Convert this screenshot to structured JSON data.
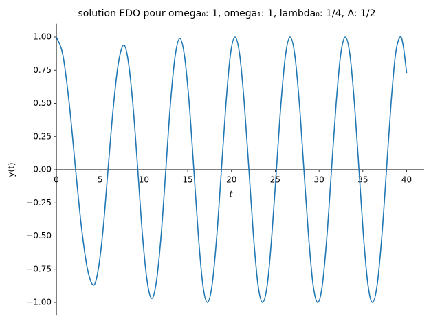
{
  "chart_data": {
    "type": "line",
    "title": "solution EDO pour omega₀: 1, omega₁: 1, lambda₀: 1/4, A: 1/2",
    "x_label": "t",
    "y_label": "y(t)",
    "xlim": [
      0,
      42
    ],
    "ylim": [
      -1.1,
      1.1
    ],
    "xticks": [
      0,
      5,
      10,
      15,
      20,
      25,
      30,
      35,
      40
    ],
    "yticks": [
      {
        "value": -1,
        "label": "−1.00"
      },
      {
        "value": -0.75,
        "label": "−0.75"
      },
      {
        "value": -0.5,
        "label": "−0.50"
      },
      {
        "value": -0.25,
        "label": "−0.25"
      },
      {
        "value": 0,
        "label": "0.00"
      },
      {
        "value": 0.25,
        "label": "0.25"
      },
      {
        "value": 0.5,
        "label": "0.50"
      },
      {
        "value": 0.75,
        "label": "0.75"
      },
      {
        "value": 1,
        "label": "1.00"
      }
    ],
    "series": [
      {
        "color": "#1f77b4",
        "x": [
          0,
          0.73,
          1.47,
          2.2,
          2.88,
          3.56,
          4.24,
          4.79,
          5.35,
          5.9,
          6.5,
          7.1,
          7.7,
          8.23,
          8.77,
          9.3,
          9.83,
          10.37,
          10.9,
          11.43,
          11.97,
          12.5,
          13.03,
          13.57,
          14.1,
          14.63,
          15.17,
          15.7,
          16.22,
          16.73,
          17.25,
          17.78,
          18.32,
          18.85,
          19.37,
          19.88,
          20.4,
          20.93,
          21.46,
          21.99,
          22.51,
          23.03,
          23.55,
          24.08,
          24.6,
          25.13,
          25.65,
          26.18,
          26.7,
          27.22,
          27.75,
          28.27,
          28.8,
          29.32,
          29.85,
          30.37,
          30.9,
          31.42,
          31.95,
          32.47,
          33,
          33.52,
          34.04,
          34.56,
          35.07,
          35.59,
          36.1,
          36.63,
          37.17,
          37.7,
          38.22,
          38.73,
          39.25,
          39.6,
          40
        ],
        "values": [
          1,
          0.87,
          0.5,
          0,
          -0.44,
          -0.75,
          -0.87,
          -0.75,
          -0.44,
          0,
          0.47,
          0.81,
          0.94,
          0.81,
          0.47,
          0,
          -0.49,
          -0.84,
          -0.97,
          -0.84,
          -0.49,
          0,
          0.5,
          0.86,
          0.99,
          0.86,
          0.5,
          0,
          -0.5,
          -0.87,
          -1,
          -0.87,
          -0.5,
          0,
          0.5,
          0.87,
          1,
          0.87,
          0.5,
          0,
          -0.5,
          -0.87,
          -1,
          -0.87,
          -0.5,
          0,
          0.5,
          0.87,
          1,
          0.87,
          0.5,
          0,
          -0.5,
          -0.87,
          -1,
          -0.87,
          -0.5,
          0,
          0.5,
          0.87,
          1,
          0.87,
          0.5,
          0,
          -0.5,
          -0.87,
          -1,
          -0.87,
          -0.5,
          0,
          0.5,
          0.87,
          1,
          0.94,
          0.73
        ]
      }
    ]
  }
}
